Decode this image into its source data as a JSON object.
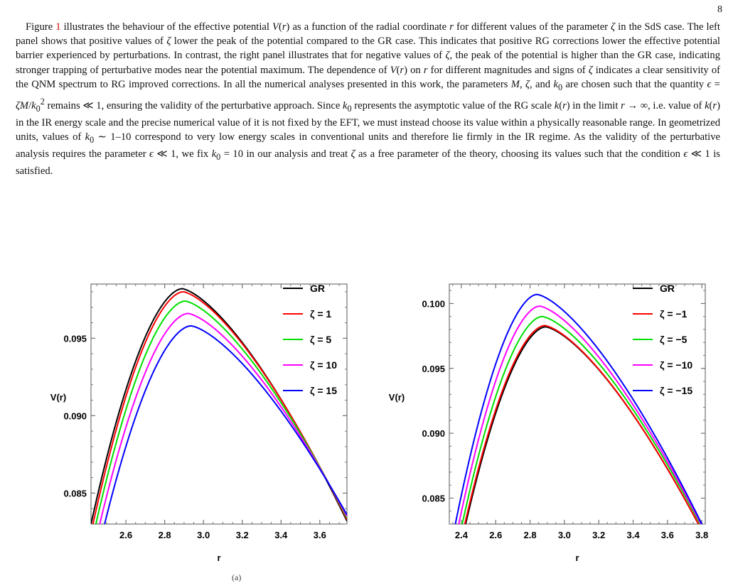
{
  "page_number": "8",
  "paragraph_html": "Figure <span class=\"ref\">1</span> illustrates the behaviour of the effective potential <i>V</i>(<i>r</i>) as a function of the radial coordinate <i>r</i> for different values of the parameter <i>ζ</i> in the SdS case. The left panel shows that positive values of <i>ζ</i> lower the peak of the potential compared to the GR case. This indicates that positive RG corrections lower the effective potential barrier experienced by perturbations. In contrast, the right panel illustrates that for negative values of <i>ζ</i>, the peak of the potential is higher than the GR case, indicating stronger trapping of perturbative modes near the potential maximum. The dependence of <i>V</i>(<i>r</i>) on <i>r</i> for different magnitudes and signs of <i>ζ</i> indicates a clear sensitivity of the QNM spectrum to RG improved corrections. In all the numerical analyses presented in this work, the parameters <i>M</i>, <i>ζ</i>, and <i>k</i><sub>0</sub> are chosen such that the quantity <i>ϵ</i> = <i>ζM</i>/<i>k</i><sub>0</sub><sup>2</sup> remains ≪ 1, ensuring the validity of the perturbative approach. Since <i>k</i><sub>0</sub> represents the asymptotic value of the RG scale <i>k</i>(<i>r</i>) in the limit <i>r</i> → ∞, i.e. value of <i>k</i>(<i>r</i>) in the IR energy scale and the precise numerical value of it is not fixed by the EFT, we must instead choose its value within a physically reasonable range. In geometrized units, values of <i>k</i><sub>0</sub> ∼ 1–10 correspond to very low energy scales in conventional units and therefore lie firmly in the IR regime. As the validity of the perturbative analysis requires the parameter <i>ϵ</i> ≪ 1, we fix <i>k</i><sub>0</sub> = 10 in our analysis and treat <i>ζ</i> as a free parameter of the theory, choosing its values such that the condition <i>ϵ</i> ≪ 1 is satisfied.",
  "subcaption_left": "(a)",
  "chart_data": [
    {
      "type": "line",
      "xlabel": "r",
      "ylabel": "V(r)",
      "xlim": [
        2.42,
        3.74
      ],
      "ylim": [
        0.083,
        0.0985
      ],
      "xticks": [
        2.6,
        2.8,
        3.0,
        3.2,
        3.4,
        3.6
      ],
      "xtick_labels": [
        "2.6",
        "2.8",
        "3.0",
        "3.2",
        "3.4",
        "3.6"
      ],
      "yticks": [
        0.085,
        0.09,
        0.095
      ],
      "ytick_labels": [
        "0.085",
        "0.090",
        "0.095"
      ],
      "legend_position": "top-right",
      "series": [
        {
          "name": "GR",
          "color": "#000000",
          "peak_r": 2.89,
          "peak_v": 0.0982,
          "left_r": 2.42,
          "left_v": 0.083,
          "right_r": 3.74,
          "right_v": 0.0832
        },
        {
          "name": "ζ = 1",
          "color": "#ff0000",
          "peak_r": 2.895,
          "peak_v": 0.098,
          "left_r": 2.43,
          "left_v": 0.083,
          "right_r": 3.74,
          "right_v": 0.0833
        },
        {
          "name": "ζ = 5",
          "color": "#00e000",
          "peak_r": 2.905,
          "peak_v": 0.0974,
          "left_r": 2.445,
          "left_v": 0.083,
          "right_r": 3.74,
          "right_v": 0.0834
        },
        {
          "name": "ζ = 10",
          "color": "#ff00ff",
          "peak_r": 2.92,
          "peak_v": 0.0966,
          "left_r": 2.465,
          "left_v": 0.083,
          "right_r": 3.74,
          "right_v": 0.0835
        },
        {
          "name": "ζ = 15",
          "color": "#0000ff",
          "peak_r": 2.935,
          "peak_v": 0.0958,
          "left_r": 2.49,
          "left_v": 0.083,
          "right_r": 3.74,
          "right_v": 0.0836
        }
      ]
    },
    {
      "type": "line",
      "xlabel": "r",
      "ylabel": "V(r)",
      "xlim": [
        2.33,
        3.82
      ],
      "ylim": [
        0.083,
        0.1015
      ],
      "xticks": [
        2.4,
        2.6,
        2.8,
        3.0,
        3.2,
        3.4,
        3.6,
        3.8
      ],
      "xtick_labels": [
        "2.4",
        "2.6",
        "2.8",
        "3.0",
        "3.2",
        "3.4",
        "3.6",
        "3.8"
      ],
      "yticks": [
        0.085,
        0.09,
        0.095,
        0.1
      ],
      "ytick_labels": [
        "0.085",
        "0.090",
        "0.095",
        "0.100"
      ],
      "legend_position": "top-right",
      "series": [
        {
          "name": "GR",
          "color": "#000000",
          "peak_r": 2.89,
          "peak_v": 0.0982,
          "left_r": 2.425,
          "left_v": 0.083,
          "right_r": 3.78,
          "right_v": 0.083
        },
        {
          "name": "ζ = −1",
          "color": "#ff0000",
          "peak_r": 2.885,
          "peak_v": 0.0983,
          "left_r": 2.42,
          "left_v": 0.083,
          "right_r": 3.78,
          "right_v": 0.083
        },
        {
          "name": "ζ = −5",
          "color": "#00e000",
          "peak_r": 2.87,
          "peak_v": 0.099,
          "left_r": 2.405,
          "left_v": 0.083,
          "right_r": 3.79,
          "right_v": 0.083
        },
        {
          "name": "ζ = −10",
          "color": "#ff00ff",
          "peak_r": 2.855,
          "peak_v": 0.0998,
          "left_r": 2.385,
          "left_v": 0.083,
          "right_r": 3.795,
          "right_v": 0.083
        },
        {
          "name": "ζ = −15",
          "color": "#0000ff",
          "peak_r": 2.84,
          "peak_v": 0.1007,
          "left_r": 2.365,
          "left_v": 0.083,
          "right_r": 3.8,
          "right_v": 0.083
        }
      ]
    }
  ]
}
